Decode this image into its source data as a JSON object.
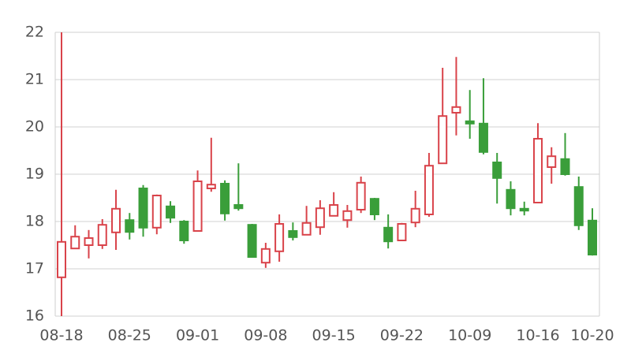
{
  "chart_data": {
    "type": "candlestick",
    "categories": [
      "08-18",
      null,
      null,
      null,
      null,
      "08-25",
      null,
      null,
      null,
      null,
      "09-01",
      null,
      null,
      null,
      null,
      "09-08",
      null,
      null,
      null,
      null,
      "09-15",
      null,
      null,
      null,
      null,
      "09-22",
      null,
      null,
      null,
      null,
      "10-09",
      null,
      null,
      null,
      null,
      "10-16",
      null,
      null,
      null,
      "10-20"
    ],
    "open": [
      16.82,
      17.43,
      17.5,
      17.5,
      17.77,
      18.03,
      18.7,
      17.87,
      18.32,
      18.0,
      17.8,
      18.7,
      18.8,
      18.35,
      17.93,
      17.13,
      17.37,
      17.8,
      17.72,
      17.88,
      18.12,
      18.03,
      18.25,
      18.48,
      17.87,
      17.6,
      17.98,
      18.15,
      19.23,
      20.3,
      20.12,
      20.07,
      19.25,
      18.67,
      18.27,
      18.4,
      19.15,
      19.32,
      18.73,
      18.02
    ],
    "high": [
      22.0,
      17.92,
      17.82,
      18.05,
      18.67,
      18.18,
      18.77,
      18.57,
      18.43,
      18.03,
      19.08,
      19.77,
      18.87,
      19.23,
      17.95,
      17.55,
      18.15,
      17.98,
      18.33,
      18.45,
      18.62,
      18.35,
      18.95,
      18.5,
      18.15,
      17.97,
      18.65,
      19.45,
      21.25,
      21.48,
      20.78,
      21.03,
      19.45,
      18.85,
      18.42,
      20.08,
      19.57,
      19.87,
      18.95,
      18.28
    ],
    "low": [
      16.0,
      17.43,
      17.22,
      17.42,
      17.4,
      17.62,
      17.68,
      17.73,
      17.97,
      17.53,
      17.8,
      18.63,
      18.02,
      18.23,
      17.25,
      17.02,
      17.15,
      17.6,
      17.72,
      17.72,
      18.12,
      17.87,
      18.18,
      18.03,
      17.43,
      17.6,
      17.88,
      18.1,
      19.23,
      19.82,
      19.75,
      19.42,
      18.38,
      18.13,
      18.13,
      18.4,
      18.8,
      18.97,
      17.82,
      17.28
    ],
    "close": [
      17.57,
      17.68,
      17.65,
      17.93,
      18.27,
      17.78,
      17.87,
      18.55,
      18.08,
      17.6,
      18.85,
      18.78,
      18.17,
      18.28,
      17.25,
      17.42,
      17.95,
      17.67,
      17.97,
      18.28,
      18.35,
      18.22,
      18.82,
      18.15,
      17.58,
      17.95,
      18.27,
      19.18,
      20.23,
      20.42,
      20.07,
      19.47,
      18.92,
      18.28,
      18.23,
      19.75,
      19.38,
      19.0,
      17.92,
      17.3
    ],
    "up_color": "#d9434a",
    "down_color": "#3a9e3a",
    "ylim": [
      16,
      22
    ],
    "yticks": [
      16,
      17,
      18,
      19,
      20,
      21,
      22
    ],
    "grid": true
  }
}
